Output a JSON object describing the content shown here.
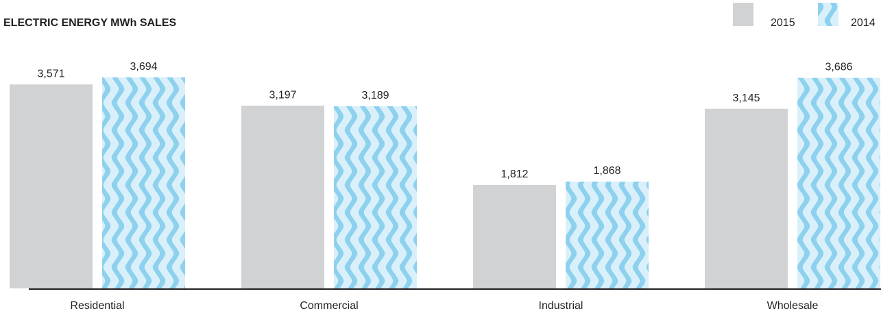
{
  "chart_data": {
    "type": "bar",
    "title": "ELECTRIC ENERGY MWh SALES",
    "categories": [
      "Residential",
      "Commercial",
      "Industrial",
      "Wholesale"
    ],
    "series": [
      {
        "name": "2015",
        "values": [
          3571,
          3197,
          1812,
          3145
        ],
        "labels": [
          "3,571",
          "3,197",
          "1,812",
          "3,145"
        ],
        "color": "#d1d2d4",
        "fill": "solid"
      },
      {
        "name": "2014",
        "values": [
          3694,
          3189,
          1868,
          3686
        ],
        "labels": [
          "3,694",
          "3,189",
          "1,868",
          "3,686"
        ],
        "color": "#8dd1ee",
        "background_color": "#d9f0fa",
        "fill": "wave-pattern"
      }
    ],
    "legend": {
      "placement": "top-right"
    },
    "ylim": [
      0,
      3694
    ],
    "grid": false,
    "baseline_color": "#231f20",
    "text_color": "#231f20"
  }
}
